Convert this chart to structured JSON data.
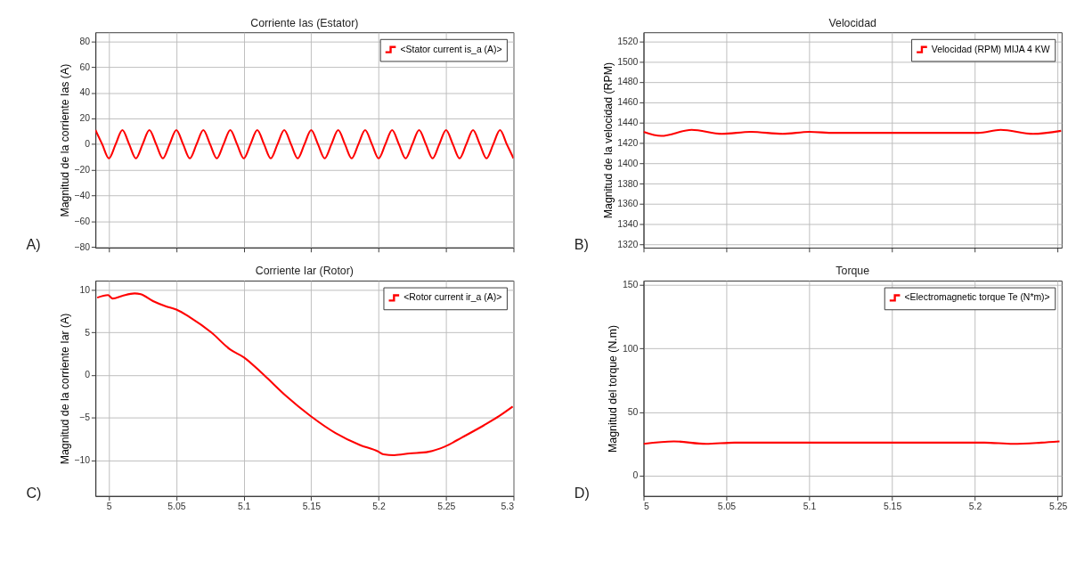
{
  "chart_data": [
    {
      "type": "line",
      "title": "Corriente Ias (Estator)",
      "ylabel": "Magnitud de la corriente Ias (A)",
      "xlim": [
        4.99,
        5.3
      ],
      "ylim": [
        -80.5,
        87
      ],
      "xticks": [
        5,
        5.05,
        5.1,
        5.15,
        5.2,
        5.25,
        5.3
      ],
      "yticks": [
        -80,
        -60,
        -40,
        -20,
        0,
        20,
        40,
        60,
        80
      ],
      "grid": true,
      "legend": "top right",
      "tick_labels": "y",
      "annotations": [
        "A)"
      ],
      "x": [
        4.99,
        4.995,
        5,
        5.005,
        5.01,
        5.015,
        5.02,
        5.025,
        5.03,
        5.035,
        5.04,
        5.045,
        5.05,
        5.055,
        5.06,
        5.065,
        5.07,
        5.075,
        5.08,
        5.085,
        5.09,
        5.095,
        5.1,
        5.105,
        5.11,
        5.115,
        5.12,
        5.125,
        5.13,
        5.135,
        5.14,
        5.145,
        5.15,
        5.155,
        5.16,
        5.165,
        5.17,
        5.175,
        5.18,
        5.185,
        5.19,
        5.195,
        5.2,
        5.205,
        5.21,
        5.215,
        5.22,
        5.225,
        5.23,
        5.235,
        5.24,
        5.245,
        5.25,
        5.255,
        5.26,
        5.265,
        5.27,
        5.275,
        5.28,
        5.285,
        5.29,
        5.295,
        5.3
      ],
      "series": [
        {
          "name": "<Stator current is_a (A)>",
          "color": "#ff0000",
          "values": [
            11,
            0,
            -11,
            0,
            11,
            0,
            -11,
            0,
            11,
            0,
            -11,
            0,
            11,
            0,
            -11,
            0,
            11,
            0,
            -11,
            0,
            11,
            0,
            -11,
            0,
            11,
            0,
            -11,
            0,
            11,
            0,
            -11,
            0,
            11,
            0,
            -11,
            0,
            11,
            0,
            -11,
            0,
            11,
            0,
            -11,
            0,
            11,
            0,
            -11,
            0,
            11,
            0,
            -11,
            0,
            11,
            0,
            -11,
            0,
            11,
            0,
            -11,
            0,
            11,
            0,
            -11
          ]
        }
      ]
    },
    {
      "type": "line",
      "title": "Velocidad",
      "ylabel": "Magnitud de la velocidad (RPM)",
      "xlim": [
        5,
        5.2523
      ],
      "ylim": [
        1317,
        1529
      ],
      "xticks": [
        5,
        5.05,
        5.1,
        5.15,
        5.2,
        5.25
      ],
      "yticks": [
        1320,
        1340,
        1360,
        1380,
        1400,
        1420,
        1440,
        1460,
        1480,
        1500,
        1520
      ],
      "grid": true,
      "legend": "top right",
      "tick_labels": "y",
      "annotations": [
        "B)"
      ],
      "x": [
        5.0,
        5.0106,
        5.029,
        5.0473,
        5.0647,
        5.084,
        5.1,
        5.115,
        5.134,
        5.15,
        5.173,
        5.202,
        5.2155,
        5.235,
        5.252
      ],
      "series": [
        {
          "name": "Velocidad (RPM) MIJA 4 KW",
          "color": "#ff0000",
          "values": [
            1431,
            1427,
            1433,
            1429,
            1431,
            1429,
            1431,
            1430,
            1430,
            1430,
            1430,
            1430,
            1433,
            1429,
            1432
          ]
        }
      ]
    },
    {
      "type": "line",
      "title": "Corriente Iar (Rotor)",
      "ylabel": "Magnitud de la corriente Iar (A)",
      "xlim": [
        4.99,
        5.3
      ],
      "ylim": [
        -14.2,
        11.1
      ],
      "xticks": [
        5,
        5.05,
        5.1,
        5.15,
        5.2,
        5.25,
        5.3
      ],
      "yticks": [
        -10,
        -5,
        0,
        5,
        10
      ],
      "grid": true,
      "legend": "top right",
      "annotations": [
        "C)"
      ],
      "x": [
        4.9913,
        4.9993,
        5.0028,
        5.0097,
        5.019,
        5.0236,
        5.0327,
        5.042,
        5.05,
        5.06,
        5.076,
        5.09,
        5.1,
        5.115,
        5.131,
        5.1495,
        5.168,
        5.186,
        5.2,
        5.2035,
        5.2115,
        5.223,
        5.237,
        5.249,
        5.262,
        5.278,
        5.2895,
        5.2994
      ],
      "series": [
        {
          "name": "<Rotor current ir_a (A)>",
          "color": "#ff0000",
          "values": [
            9.1,
            9.4,
            9.0,
            9.3,
            9.6,
            9.5,
            8.7,
            8.1,
            7.7,
            6.8,
            5.0,
            3.0,
            2.1,
            0,
            -2.4,
            -4.8,
            -6.8,
            -8.2,
            -9.0,
            -9.3,
            -9.4,
            -9.2,
            -9.0,
            -8.4,
            -7.3,
            -5.9,
            -4.8,
            -3.7
          ]
        }
      ]
    },
    {
      "type": "line",
      "title": "Torque",
      "ylabel": "Magnitud del torque (N.m)",
      "xlim": [
        5,
        5.2523
      ],
      "ylim": [
        -16,
        153.4
      ],
      "xticks": [
        5,
        5.05,
        5.1,
        5.15,
        5.2,
        5.25
      ],
      "yticks": [
        0,
        50,
        100,
        150
      ],
      "grid": true,
      "legend": "top right",
      "annotations": [
        "D)"
      ],
      "x": [
        5.0,
        5.0183,
        5.0376,
        5.055,
        5.0724,
        5.0955,
        5.1245,
        5.153,
        5.192,
        5.2056,
        5.223,
        5.24,
        5.251
      ],
      "series": [
        {
          "name": "<Electromagnetic torque Te (N*m)>",
          "color": "#ff0000",
          "values": [
            25,
            27,
            25,
            26,
            26,
            26,
            26,
            26,
            26,
            26,
            25,
            26,
            27
          ]
        }
      ]
    }
  ]
}
